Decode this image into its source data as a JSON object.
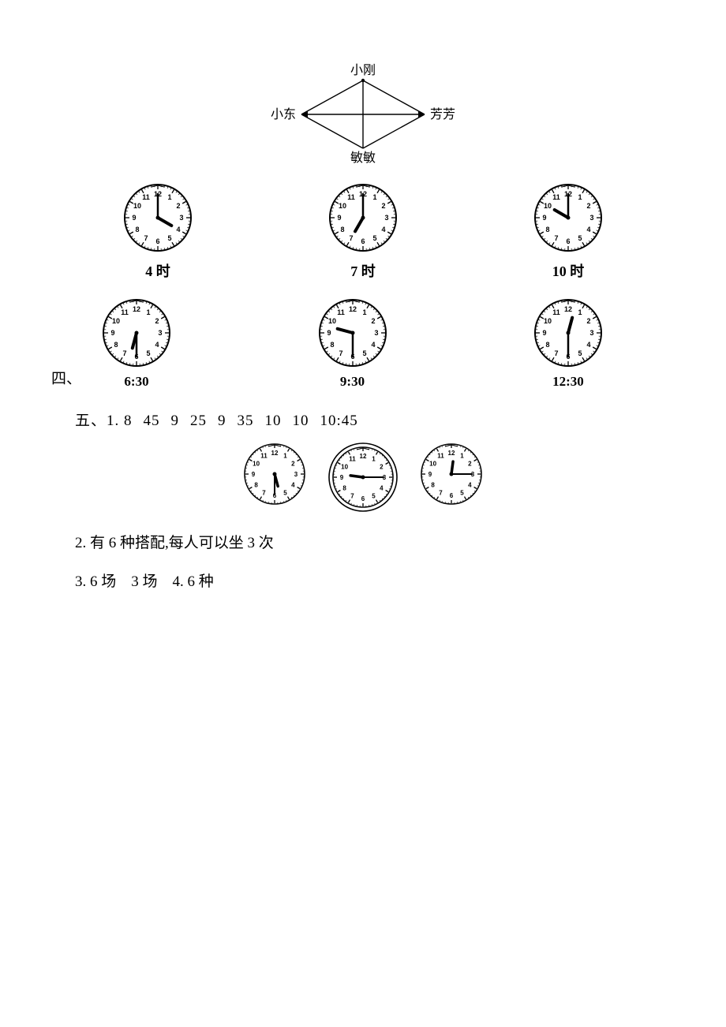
{
  "pairing": {
    "top": "小刚",
    "left": "小东",
    "right": "芳芳",
    "bottom": "敏敏"
  },
  "clocks_row1": [
    {
      "hour": 4,
      "minute": 0,
      "label": "4 时"
    },
    {
      "hour": 7,
      "minute": 0,
      "label": "7 时"
    },
    {
      "hour": 10,
      "minute": 0,
      "label": "10 时"
    }
  ],
  "clocks_row2": [
    {
      "hour": 6,
      "minute": 30,
      "label": "6:30"
    },
    {
      "hour": 9,
      "minute": 30,
      "label": "9:30"
    },
    {
      "hour": 12,
      "minute": 30,
      "label": "12:30"
    }
  ],
  "section_four_prefix": "四、",
  "answer_five": {
    "prefix": "五、1.",
    "values": [
      "8",
      "45",
      "9",
      "25",
      "9",
      "35",
      "10",
      "10",
      "10:45"
    ]
  },
  "small_clocks": [
    {
      "hour": 5,
      "minute": 30,
      "double_ring": false
    },
    {
      "hour": 9,
      "minute": 15,
      "double_ring": true
    },
    {
      "hour": 12,
      "minute": 15,
      "double_ring": false
    }
  ],
  "line2": "2. 有 6 种搭配,每人可以坐 3 次",
  "line3": "3. 6 场　3 场　4. 6 种",
  "clock_style": {
    "radius": 42,
    "stroke": "#000000",
    "stroke_width": 2,
    "number_fontsize": 9,
    "hour_hand_len": 20,
    "minute_hand_len": 30,
    "hour_hand_width": 4,
    "minute_hand_width": 2.5,
    "tick_len": 4
  },
  "small_clock_style": {
    "radius": 38,
    "stroke": "#000000",
    "stroke_width": 1.6,
    "number_fontsize": 8,
    "hour_hand_len": 16,
    "minute_hand_len": 26,
    "hour_hand_width": 3.5,
    "minute_hand_width": 2,
    "tick_len": 3
  }
}
